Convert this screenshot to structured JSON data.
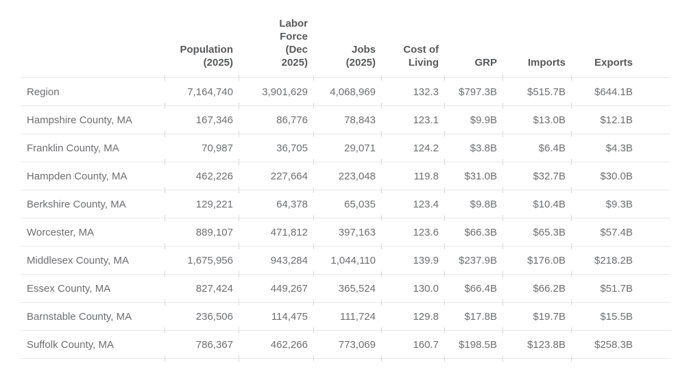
{
  "colors": {
    "background": "#ffffff",
    "body_text": "#6d6e71",
    "header_text": "#57585a",
    "row_separator": "#e8e8e8",
    "column_tick": "#d9d9d9"
  },
  "table": {
    "columns": [
      {
        "key": "name",
        "label": ""
      },
      {
        "key": "population",
        "label": "Population\n(2025)"
      },
      {
        "key": "labor_force",
        "label": "Labor\nForce\n(Dec\n2025)"
      },
      {
        "key": "jobs",
        "label": "Jobs\n(2025)"
      },
      {
        "key": "cost_of_living",
        "label": "Cost of\nLiving"
      },
      {
        "key": "grp",
        "label": "GRP"
      },
      {
        "key": "imports",
        "label": "Imports"
      },
      {
        "key": "exports",
        "label": "Exports"
      }
    ],
    "rows": [
      {
        "name": "Region",
        "values": [
          "7,164,740",
          "3,901,629",
          "4,068,969",
          "132.3",
          "$797.3B",
          "$515.7B",
          "$644.1B"
        ]
      },
      {
        "name": "Hampshire County, MA",
        "values": [
          "167,346",
          "86,776",
          "78,843",
          "123.1",
          "$9.9B",
          "$13.0B",
          "$12.1B"
        ]
      },
      {
        "name": "Franklin County, MA",
        "values": [
          "70,987",
          "36,705",
          "29,071",
          "124.2",
          "$3.8B",
          "$6.4B",
          "$4.3B"
        ]
      },
      {
        "name": "Hampden County, MA",
        "values": [
          "462,226",
          "227,664",
          "223,048",
          "119.8",
          "$31.0B",
          "$32.7B",
          "$30.0B"
        ]
      },
      {
        "name": "Berkshire County, MA",
        "values": [
          "129,221",
          "64,378",
          "65,035",
          "123.4",
          "$9.8B",
          "$10.4B",
          "$9.3B"
        ]
      },
      {
        "name": "Worcester, MA",
        "values": [
          "889,107",
          "471,812",
          "397,163",
          "123.6",
          "$66.3B",
          "$65.3B",
          "$57.4B"
        ]
      },
      {
        "name": "Middlesex County, MA",
        "values": [
          "1,675,956",
          "943,284",
          "1,044,110",
          "139.9",
          "$237.9B",
          "$176.0B",
          "$218.2B"
        ]
      },
      {
        "name": "Essex County, MA",
        "values": [
          "827,424",
          "449,267",
          "365,524",
          "130.0",
          "$66.4B",
          "$66.2B",
          "$51.7B"
        ]
      },
      {
        "name": "Barnstable County, MA",
        "values": [
          "236,506",
          "114,475",
          "111,724",
          "129.8",
          "$17.8B",
          "$19.7B",
          "$15.5B"
        ]
      },
      {
        "name": "Suffolk County, MA",
        "values": [
          "786,367",
          "462,266",
          "773,069",
          "160.7",
          "$198.5B",
          "$123.8B",
          "$258.3B"
        ]
      }
    ]
  },
  "chart_data": {
    "type": "table",
    "title": "",
    "columns": [
      "",
      "Population (2025)",
      "Labor Force (Dec 2025)",
      "Jobs (2025)",
      "Cost of Living",
      "GRP",
      "Imports",
      "Exports"
    ],
    "rows": [
      [
        "Region",
        7164740,
        3901629,
        4068969,
        132.3,
        "$797.3B",
        "$515.7B",
        "$644.1B"
      ],
      [
        "Hampshire County, MA",
        167346,
        86776,
        78843,
        123.1,
        "$9.9B",
        "$13.0B",
        "$12.1B"
      ],
      [
        "Franklin County, MA",
        70987,
        36705,
        29071,
        124.2,
        "$3.8B",
        "$6.4B",
        "$4.3B"
      ],
      [
        "Hampden County, MA",
        462226,
        227664,
        223048,
        119.8,
        "$31.0B",
        "$32.7B",
        "$30.0B"
      ],
      [
        "Berkshire County, MA",
        129221,
        64378,
        65035,
        123.4,
        "$9.8B",
        "$10.4B",
        "$9.3B"
      ],
      [
        "Worcester, MA",
        889107,
        471812,
        397163,
        123.6,
        "$66.3B",
        "$65.3B",
        "$57.4B"
      ],
      [
        "Middlesex County, MA",
        1675956,
        943284,
        1044110,
        139.9,
        "$237.9B",
        "$176.0B",
        "$218.2B"
      ],
      [
        "Essex County, MA",
        827424,
        449267,
        365524,
        130.0,
        "$66.4B",
        "$66.2B",
        "$51.7B"
      ],
      [
        "Barnstable County, MA",
        236506,
        114475,
        111724,
        129.8,
        "$17.8B",
        "$19.7B",
        "$15.5B"
      ],
      [
        "Suffolk County, MA",
        786367,
        462266,
        773069,
        160.7,
        "$198.5B",
        "$123.8B",
        "$258.3B"
      ]
    ]
  }
}
